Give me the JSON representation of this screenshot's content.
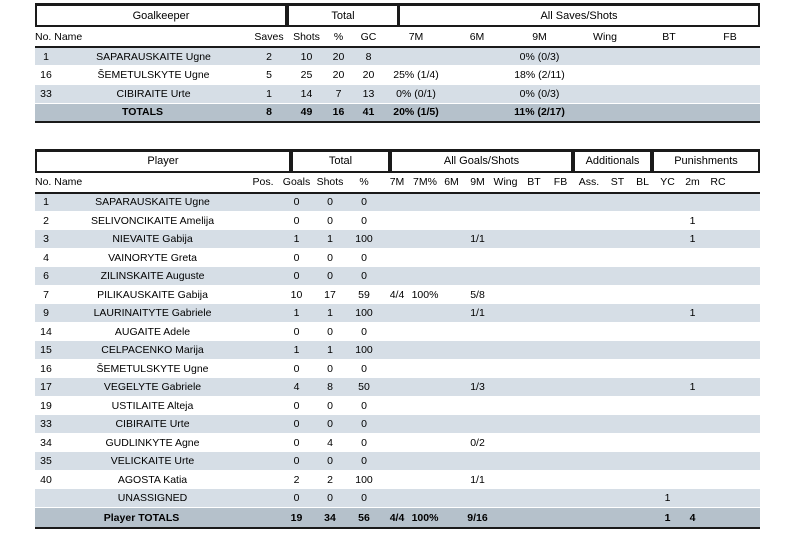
{
  "colors": {
    "row_stripe": "#d6dee6",
    "totals_row": "#b5c1cb",
    "table_border": "#1a1a1a",
    "text": "#000000"
  },
  "goalkeeper_table": {
    "group_headers": [
      "Goalkeeper",
      "Total",
      "All Saves/Shots"
    ],
    "name_column_header": "No. Name",
    "stat_columns": [
      "Saves",
      "Shots",
      "%",
      "GC",
      "7M",
      "6M",
      "9M",
      "Wing",
      "BT",
      "FB"
    ],
    "rows": [
      {
        "no": "1",
        "name": "SAPARAUSKAITE Ugne",
        "stats": [
          "2",
          "10",
          "20",
          "8",
          "",
          "",
          "0% (0/3)",
          "",
          "",
          ""
        ]
      },
      {
        "no": "16",
        "name": "ŠEMETULSKYTE Ugne",
        "stats": [
          "5",
          "25",
          "20",
          "20",
          "25% (1/4)",
          "",
          "18% (2/11)",
          "",
          "",
          ""
        ]
      },
      {
        "no": "33",
        "name": "CIBIRAITE Urte",
        "stats": [
          "1",
          "14",
          "7",
          "13",
          "0% (0/1)",
          "",
          "0% (0/3)",
          "",
          "",
          ""
        ]
      }
    ],
    "totals": {
      "label": "TOTALS",
      "stats": [
        "8",
        "49",
        "16",
        "41",
        "20% (1/5)",
        "",
        "11% (2/17)",
        "",
        "",
        ""
      ]
    }
  },
  "player_table": {
    "group_headers": [
      "Player",
      "Total",
      "All Goals/Shots",
      "Additionals",
      "Punishments"
    ],
    "name_column_header": "No. Name",
    "stat_columns": [
      "Pos.",
      "Goals",
      "Shots",
      "%",
      "7M",
      "7M%",
      "6M",
      "9M",
      "Wing",
      "BT",
      "FB",
      "Ass.",
      "ST",
      "BL",
      "YC",
      "2m",
      "RC"
    ],
    "rows": [
      {
        "no": "1",
        "name": "SAPARAUSKAITE Ugne",
        "stats": [
          "",
          "0",
          "0",
          "0",
          "",
          "",
          "",
          "",
          "",
          "",
          "",
          "",
          "",
          "",
          "",
          "",
          ""
        ]
      },
      {
        "no": "2",
        "name": "SELIVONCIKAITE Amelija",
        "stats": [
          "",
          "0",
          "0",
          "0",
          "",
          "",
          "",
          "",
          "",
          "",
          "",
          "",
          "",
          "",
          "",
          "1",
          ""
        ]
      },
      {
        "no": "3",
        "name": "NIEVAITE Gabija",
        "stats": [
          "",
          "1",
          "1",
          "100",
          "",
          "",
          "",
          "1/1",
          "",
          "",
          "",
          "",
          "",
          "",
          "",
          "1",
          ""
        ]
      },
      {
        "no": "4",
        "name": "VAINORYTE Greta",
        "stats": [
          "",
          "0",
          "0",
          "0",
          "",
          "",
          "",
          "",
          "",
          "",
          "",
          "",
          "",
          "",
          "",
          "",
          ""
        ]
      },
      {
        "no": "6",
        "name": "ZILINSKAITE Auguste",
        "stats": [
          "",
          "0",
          "0",
          "0",
          "",
          "",
          "",
          "",
          "",
          "",
          "",
          "",
          "",
          "",
          "",
          "",
          ""
        ]
      },
      {
        "no": "7",
        "name": "PILIKAUSKAITE Gabija",
        "stats": [
          "",
          "10",
          "17",
          "59",
          "4/4",
          "100%",
          "",
          "5/8",
          "",
          "",
          "",
          "",
          "",
          "",
          "",
          "",
          ""
        ]
      },
      {
        "no": "9",
        "name": "LAURINAITYTE Gabriele",
        "stats": [
          "",
          "1",
          "1",
          "100",
          "",
          "",
          "",
          "1/1",
          "",
          "",
          "",
          "",
          "",
          "",
          "",
          "1",
          ""
        ]
      },
      {
        "no": "14",
        "name": "AUGAITE Adele",
        "stats": [
          "",
          "0",
          "0",
          "0",
          "",
          "",
          "",
          "",
          "",
          "",
          "",
          "",
          "",
          "",
          "",
          "",
          ""
        ]
      },
      {
        "no": "15",
        "name": "CELPACENKO Marija",
        "stats": [
          "",
          "1",
          "1",
          "100",
          "",
          "",
          "",
          "",
          "",
          "",
          "",
          "",
          "",
          "",
          "",
          "",
          ""
        ]
      },
      {
        "no": "16",
        "name": "ŠEMETULSKYTE Ugne",
        "stats": [
          "",
          "0",
          "0",
          "0",
          "",
          "",
          "",
          "",
          "",
          "",
          "",
          "",
          "",
          "",
          "",
          "",
          ""
        ]
      },
      {
        "no": "17",
        "name": "VEGELYTE Gabriele",
        "stats": [
          "",
          "4",
          "8",
          "50",
          "",
          "",
          "",
          "1/3",
          "",
          "",
          "",
          "",
          "",
          "",
          "",
          "1",
          ""
        ]
      },
      {
        "no": "19",
        "name": "USTILAITE Alteja",
        "stats": [
          "",
          "0",
          "0",
          "0",
          "",
          "",
          "",
          "",
          "",
          "",
          "",
          "",
          "",
          "",
          "",
          "",
          ""
        ]
      },
      {
        "no": "33",
        "name": "CIBIRAITE Urte",
        "stats": [
          "",
          "0",
          "0",
          "0",
          "",
          "",
          "",
          "",
          "",
          "",
          "",
          "",
          "",
          "",
          "",
          "",
          ""
        ]
      },
      {
        "no": "34",
        "name": "GUDLINKYTE Agne",
        "stats": [
          "",
          "0",
          "4",
          "0",
          "",
          "",
          "",
          "0/2",
          "",
          "",
          "",
          "",
          "",
          "",
          "",
          "",
          ""
        ]
      },
      {
        "no": "35",
        "name": "VELICKAITE Urte",
        "stats": [
          "",
          "0",
          "0",
          "0",
          "",
          "",
          "",
          "",
          "",
          "",
          "",
          "",
          "",
          "",
          "",
          "",
          ""
        ]
      },
      {
        "no": "40",
        "name": "AGOSTA Katia",
        "stats": [
          "",
          "2",
          "2",
          "100",
          "",
          "",
          "",
          "1/1",
          "",
          "",
          "",
          "",
          "",
          "",
          "",
          "",
          ""
        ]
      },
      {
        "no": "",
        "name": "UNASSIGNED",
        "stats": [
          "",
          "0",
          "0",
          "0",
          "",
          "",
          "",
          "",
          "",
          "",
          "",
          "",
          "",
          "",
          "1",
          "",
          ""
        ]
      }
    ],
    "totals": {
      "label": "Player TOTALS",
      "stats": [
        "",
        "19",
        "34",
        "56",
        "4/4",
        "100%",
        "",
        "9/16",
        "",
        "",
        "",
        "",
        "",
        "",
        "1",
        "4",
        ""
      ]
    }
  }
}
